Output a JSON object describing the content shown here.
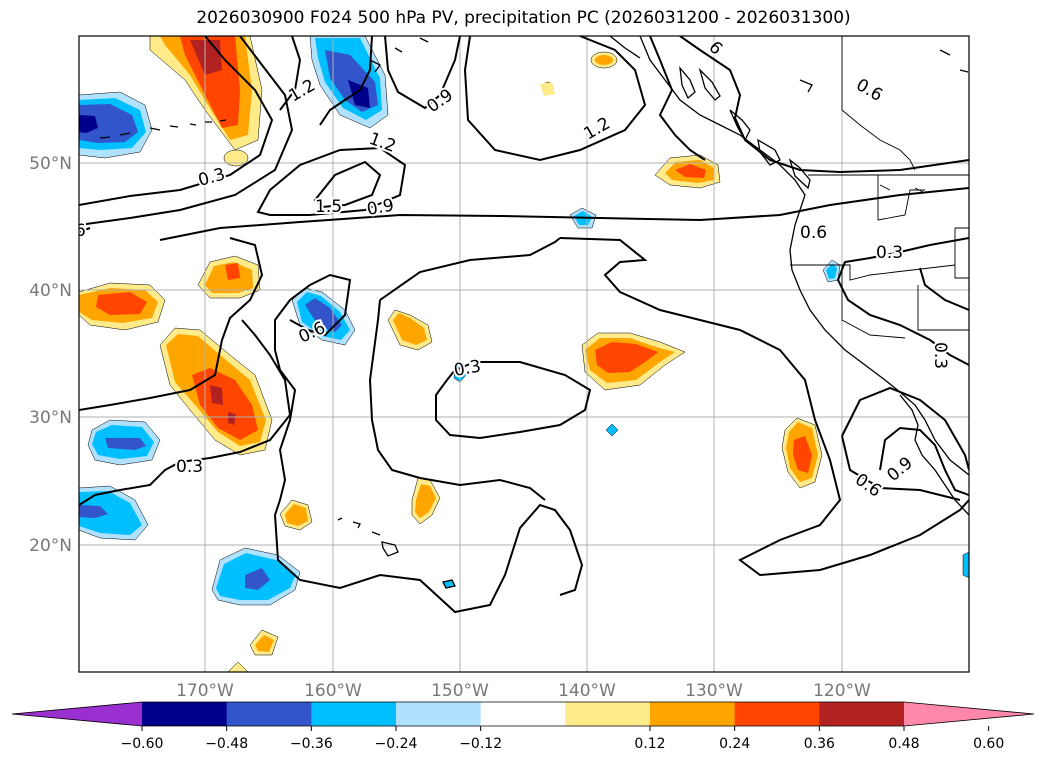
{
  "title": "2026030900 F024 500 hPa PV, precipitation PC (2026031200 - 2026031300)",
  "lat_labels": [
    "50°N",
    "40°N",
    "30°N",
    "20°N"
  ],
  "lon_labels": [
    "170°W",
    "160°W",
    "150°W",
    "140°W",
    "130°W",
    "120°W"
  ],
  "pv_contour_labels": [
    "1.2",
    "0.9",
    "1.2",
    "1.2",
    "1.5",
    "0.9",
    "0.3",
    "6",
    "0.6",
    "0.6",
    "0.3",
    "0.3",
    "0.6",
    "0.3",
    "0.6",
    "0.9",
    "0.3",
    "6"
  ],
  "colorbar": {
    "ticks": [
      "−0.60",
      "−0.48",
      "−0.36",
      "−0.24",
      "−0.12",
      "0.12",
      "0.24",
      "0.36",
      "0.48",
      "0.60"
    ],
    "colors": [
      "#9b30d0",
      "#00008b",
      "#3355cc",
      "#00bfff",
      "#b0e2ff",
      "#ffffff",
      "#ffeb8a",
      "#ffa500",
      "#ff4500",
      "#b22222",
      "#ff88aa"
    ]
  }
}
